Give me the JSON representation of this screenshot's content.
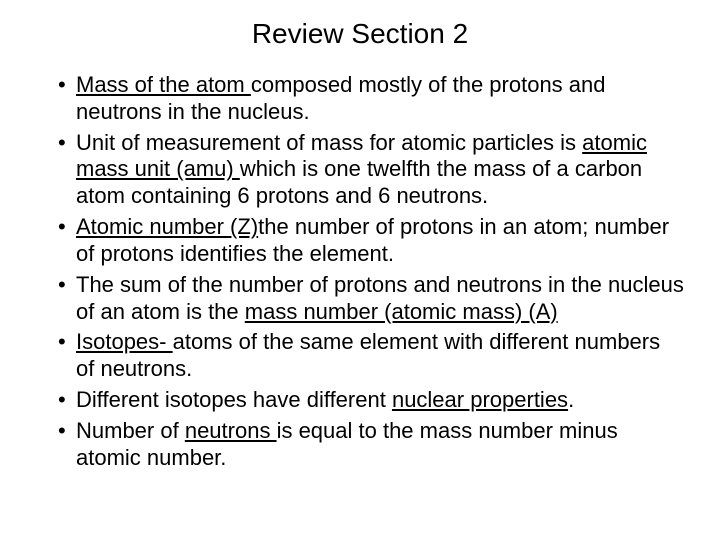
{
  "slide": {
    "title": "Review Section 2",
    "title_fontsize": 28,
    "body_fontsize": 22,
    "background_color": "#ffffff",
    "text_color": "#000000",
    "font_family": "Arial",
    "bullets": [
      {
        "pre": "",
        "u1": "Mass of the atom ",
        "mid1": "composed mostly of the protons and neutrons in the nucleus.",
        "u2": "",
        "mid2": "",
        "u3": "",
        "post": ""
      },
      {
        "pre": "Unit of measurement of mass for atomic particles is ",
        "u1": "atomic mass unit (amu) ",
        "mid1": "which is one twelfth the mass of a carbon atom containing 6 protons and 6 neutrons.",
        "u2": "",
        "mid2": "",
        "u3": "",
        "post": ""
      },
      {
        "pre": "",
        "u1": "Atomic number (Z)",
        "mid1": "the number of protons in an atom; number of protons identifies the element.",
        "u2": "",
        "mid2": "",
        "u3": "",
        "post": ""
      },
      {
        "pre": "The sum of the number of protons and neutrons in the nucleus of an atom is the ",
        "u1": "mass number (atomic mass) (A)",
        "mid1": "",
        "u2": "",
        "mid2": "",
        "u3": "",
        "post": ""
      },
      {
        "pre": "",
        "u1": "Isotopes- ",
        "mid1": "atoms of the same element with different numbers of neutrons.",
        "u2": "",
        "mid2": "",
        "u3": "",
        "post": ""
      },
      {
        "pre": "Different isotopes have different ",
        "u1": "nuclear properties",
        "mid1": ".",
        "u2": "",
        "mid2": "",
        "u3": "",
        "post": ""
      },
      {
        "pre": "Number of ",
        "u1": "neutrons ",
        "mid1": "is equal to the mass number minus atomic number.",
        "u2": "",
        "mid2": "",
        "u3": "",
        "post": ""
      }
    ]
  }
}
